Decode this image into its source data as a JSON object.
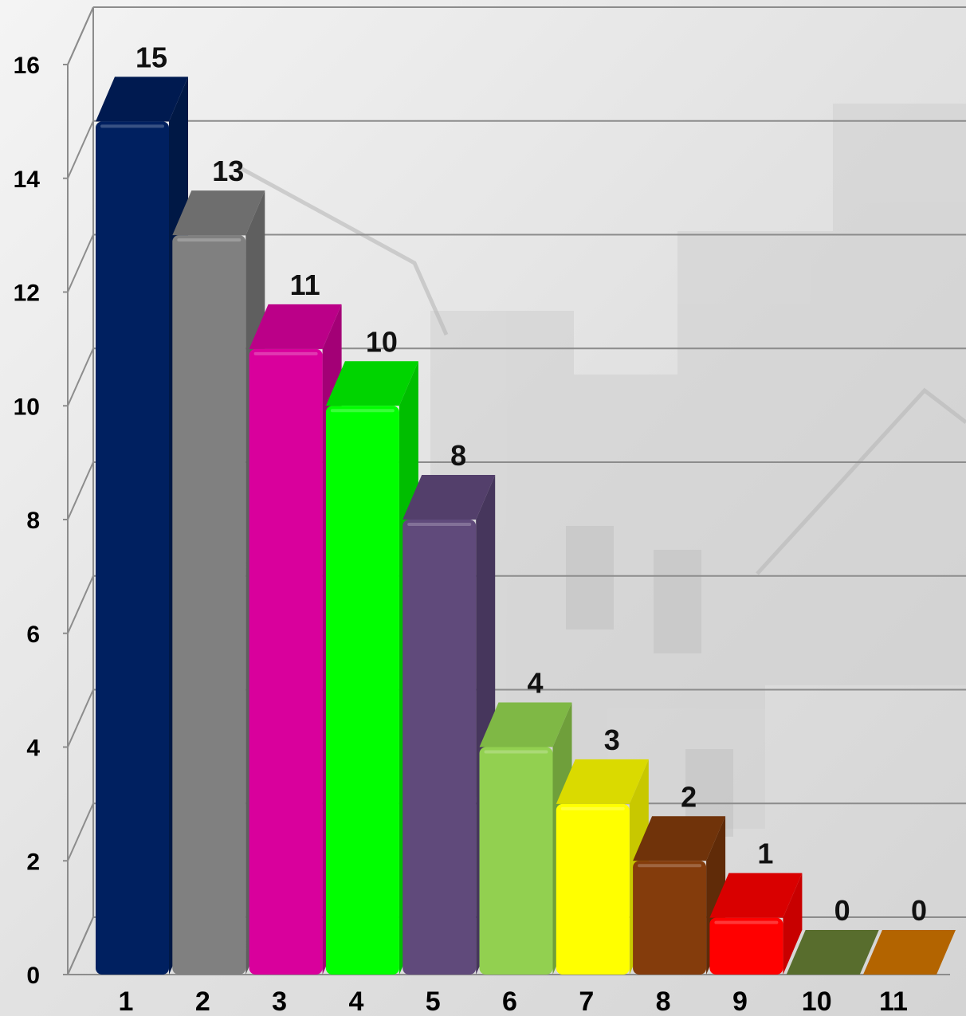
{
  "chart_data": {
    "type": "bar",
    "categories": [
      "1",
      "2",
      "3",
      "4",
      "5",
      "6",
      "7",
      "8",
      "9",
      "10",
      "11"
    ],
    "values": [
      15,
      13,
      11,
      10,
      8,
      4,
      3,
      2,
      1,
      0,
      0
    ],
    "data_labels": [
      "15",
      "13",
      "11",
      "10",
      "8",
      "4",
      "3",
      "2",
      "1",
      "0",
      "0"
    ],
    "y_tick_labels": [
      "0",
      "2",
      "4",
      "6",
      "8",
      "10",
      "12",
      "14",
      "16"
    ],
    "ylim": [
      0,
      16
    ],
    "title": "",
    "xlabel": "",
    "ylabel": "",
    "grid": true,
    "legend": false,
    "style": "3d-bar",
    "bar_colors": [
      {
        "front": "#002060",
        "side": "#001845",
        "top": "#001a50"
      },
      {
        "front": "#808080",
        "side": "#5f5f5f",
        "top": "#6e6e6e"
      },
      {
        "front": "#d9009c",
        "side": "#a30076",
        "top": "#bb0088"
      },
      {
        "front": "#00ff00",
        "side": "#00be00",
        "top": "#00d400"
      },
      {
        "front": "#604a7b",
        "side": "#46365c",
        "top": "#533f6b"
      },
      {
        "front": "#92d050",
        "side": "#6f9f3b",
        "top": "#7fb845"
      },
      {
        "front": "#ffff00",
        "side": "#c8c800",
        "top": "#dada00"
      },
      {
        "front": "#843c0c",
        "side": "#602b08",
        "top": "#70330a"
      },
      {
        "front": "#ff0000",
        "side": "#c80000",
        "top": "#d90000"
      },
      {
        "front": "#4f6228",
        "side": "#3d4c1f",
        "top": "#586d2d"
      },
      {
        "front": "#a25a00",
        "side": "#7b4400",
        "top": "#b36400"
      }
    ],
    "colors": {
      "gridline": "#8c8c8c",
      "axis_text": "#000000",
      "label_text": "#111111"
    }
  }
}
